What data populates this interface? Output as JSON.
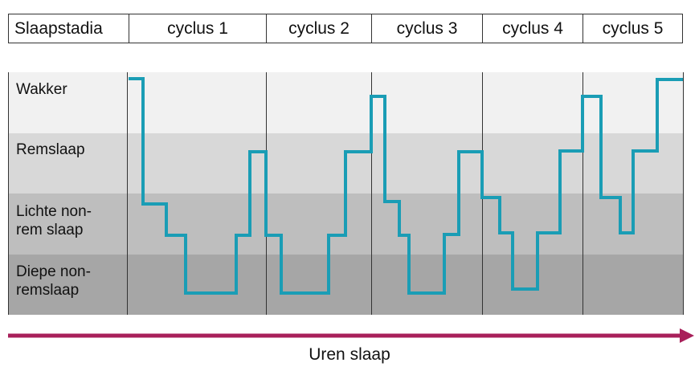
{
  "header": {
    "first_col": "Slaapstadia",
    "cycles": [
      "cyclus 1",
      "cyclus 2",
      "cyclus 3",
      "cyclus 4",
      "cyclus 5"
    ]
  },
  "stages": [
    {
      "label": "Wakker",
      "color": "#f1f1f1"
    },
    {
      "label": "Remslaap",
      "color": "#d8d8d8"
    },
    {
      "label": "Lichte non-\nrem slaap",
      "color": "#bebebe"
    },
    {
      "label": "Diepe non-\nremslaap",
      "color": "#a6a6a6"
    }
  ],
  "line_color": "#1a9db5",
  "arrow_color": "#a8205a",
  "x_axis_label": "Uren slaap"
}
